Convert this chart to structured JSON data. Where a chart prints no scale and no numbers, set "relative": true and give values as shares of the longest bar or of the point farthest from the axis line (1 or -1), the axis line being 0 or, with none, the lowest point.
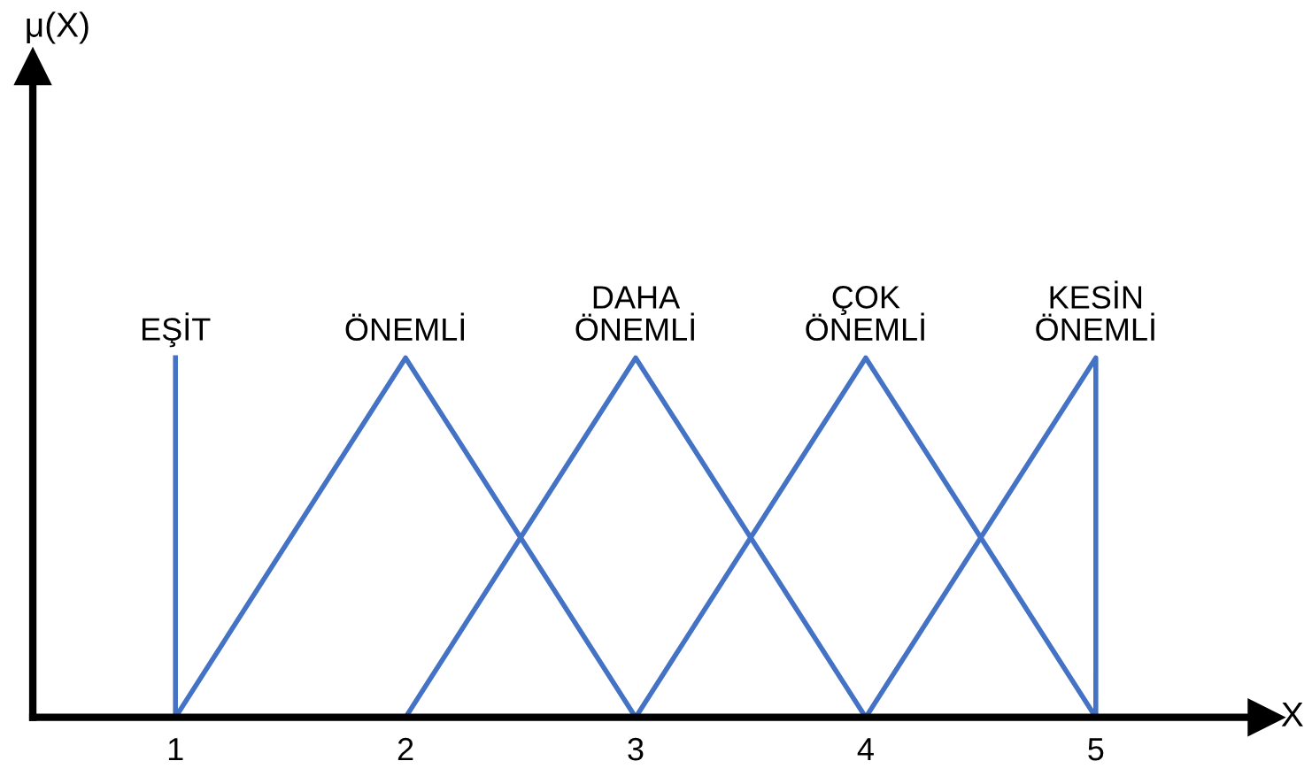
{
  "chart_data": {
    "type": "line",
    "relative": true,
    "xlabel": "X",
    "annotations": [
      "μ(X)"
    ],
    "xlim": [
      0.38,
      5.74
    ],
    "xticks": [
      1,
      2,
      3,
      4,
      5
    ],
    "grid": false,
    "legend": false,
    "marker": "none",
    "line_style": "solid",
    "series": [
      {
        "name": "EŞİT",
        "color": "#4472c4",
        "x": [
          1,
          1
        ],
        "values": [
          0,
          1
        ]
      },
      {
        "name": "ÖNEMLİ",
        "color": "#4472c4",
        "x": [
          1,
          2,
          3
        ],
        "values": [
          0,
          1,
          0
        ]
      },
      {
        "name": "DAHA\nÖNEMLİ",
        "color": "#4472c4",
        "x": [
          2,
          3,
          4
        ],
        "values": [
          0,
          1,
          0
        ]
      },
      {
        "name": "ÇOK\nÖNEMLİ",
        "color": "#4472c4",
        "x": [
          3,
          4,
          5
        ],
        "values": [
          0,
          1,
          0
        ]
      },
      {
        "name": "KESİN\nÖNEMLİ",
        "color": "#4472c4",
        "x": [
          4,
          5,
          5
        ],
        "values": [
          0,
          1,
          0
        ]
      }
    ]
  }
}
